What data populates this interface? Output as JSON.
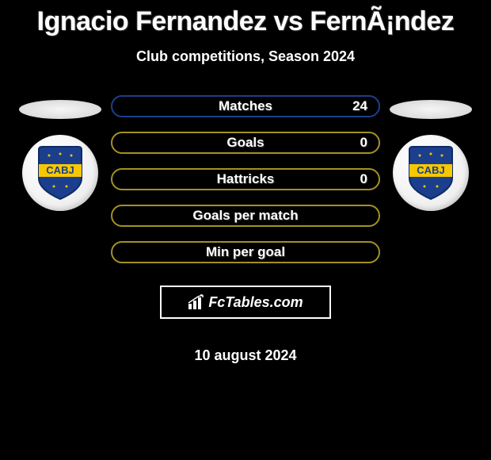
{
  "title": "Ignacio Fernandez vs FernÃ¡ndez",
  "subtitle": "Club competitions, Season 2024",
  "date": "10 august 2024",
  "logo_text": "FcTables.com",
  "club_badge": {
    "text_top": "CABJ",
    "bg_color": "#1b3f8c",
    "stripe_color": "#f7c800",
    "outline_color": "#0e2a66"
  },
  "stats": [
    {
      "label": "Matches",
      "value_right": "24",
      "border_color": "#1b3f8c",
      "show_value": true
    },
    {
      "label": "Goals",
      "value_right": "0",
      "border_color": "#a39123",
      "show_value": true
    },
    {
      "label": "Hattricks",
      "value_right": "0",
      "border_color": "#a39123",
      "show_value": true
    },
    {
      "label": "Goals per match",
      "value_right": "",
      "border_color": "#a39123",
      "show_value": false
    },
    {
      "label": "Min per goal",
      "value_right": "",
      "border_color": "#a39123",
      "show_value": false
    }
  ],
  "colors": {
    "background": "#000000",
    "text": "#ffffff",
    "head_ellipse": "#e8e8e8"
  }
}
